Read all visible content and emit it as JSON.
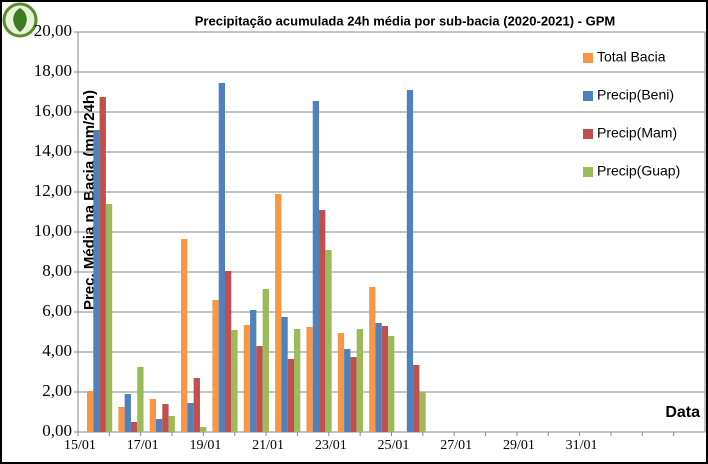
{
  "chart_data": {
    "type": "bar",
    "title": "Precipitação acumulada 24h média por sub-bacia (2020-2021) - GPM",
    "y_label": "Prec. Média na Bacia (mm/24h)",
    "x_label": "Data",
    "categories": [
      "15/01",
      null,
      "17/01",
      null,
      "19/01",
      null,
      "21/01",
      null,
      "23/01",
      null,
      "25/01",
      null,
      "27/01",
      null,
      "29/01",
      null,
      "31/01",
      null,
      null,
      null
    ],
    "series": [
      {
        "name": "Total Bacia",
        "color": "#f79646",
        "values": [
          2.05,
          1.25,
          1.65,
          9.65,
          6.6,
          5.35,
          11.9,
          5.25,
          4.95,
          7.25,
          null,
          null,
          null,
          null,
          null,
          null,
          null,
          null,
          null,
          null
        ]
      },
      {
        "name": "Precip(Beni)",
        "color": "#4f81bd",
        "values": [
          15.1,
          1.9,
          0.65,
          1.45,
          17.45,
          6.1,
          5.75,
          16.55,
          4.15,
          5.45,
          17.1,
          null,
          null,
          null,
          null,
          null,
          null,
          null,
          null,
          null
        ]
      },
      {
        "name": "Precip(Mam)",
        "color": "#c0504d",
        "values": [
          16.75,
          0.5,
          1.4,
          2.7,
          8.05,
          4.3,
          3.65,
          11.1,
          3.75,
          5.3,
          3.35,
          null,
          null,
          null,
          null,
          null,
          null,
          null,
          null,
          null
        ]
      },
      {
        "name": "Precip(Guap)",
        "color": "#9bbb59",
        "values": [
          11.4,
          3.25,
          0.8,
          0.25,
          5.1,
          7.15,
          5.15,
          9.1,
          5.15,
          4.8,
          2.0,
          null,
          null,
          null,
          null,
          null,
          null,
          null,
          null,
          null
        ]
      }
    ],
    "ylim": [
      0,
      20
    ],
    "yticks": [
      {
        "value": 0,
        "label": "0,00"
      },
      {
        "value": 2,
        "label": "2,00"
      },
      {
        "value": 4,
        "label": "4,00"
      },
      {
        "value": 6,
        "label": "6,00"
      },
      {
        "value": 8,
        "label": "8,00"
      },
      {
        "value": 10,
        "label": "10,00"
      },
      {
        "value": 12,
        "label": "12,00"
      },
      {
        "value": 14,
        "label": "14,00"
      },
      {
        "value": 16,
        "label": "16,00"
      },
      {
        "value": 18,
        "label": "18,00"
      },
      {
        "value": 20,
        "label": "20,00"
      }
    ],
    "grid": true,
    "legend": "upper right"
  }
}
